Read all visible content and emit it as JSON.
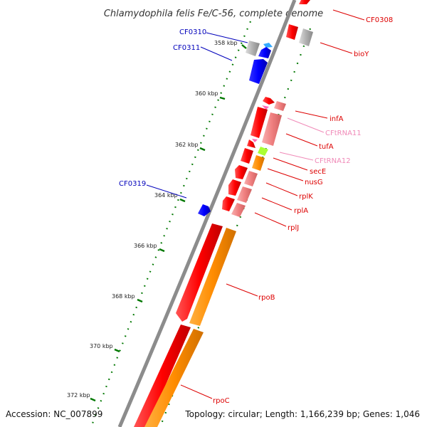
{
  "title": "Chlamydophila felis Fe/C-56, complete genome",
  "accession": "Accession: NC_007899",
  "topology": "Topology: circular; Length: 1,166,239 bp; Genes: 1,046",
  "ticks": [
    "358 kbp",
    "360 kbp",
    "362 kbp",
    "364 kbp",
    "366 kbp",
    "368 kbp",
    "370 kbp",
    "372 kbp"
  ],
  "labels": [
    {
      "text": "CF0308",
      "color": "#dd0000"
    },
    {
      "text": "CF0310",
      "color": "#0000bb"
    },
    {
      "text": "CF0311",
      "color": "#0000bb"
    },
    {
      "text": "bioY",
      "color": "#dd0000"
    },
    {
      "text": "infA",
      "color": "#dd0000"
    },
    {
      "text": "CFtRNA11",
      "color": "#f08ab8"
    },
    {
      "text": "tufA",
      "color": "#dd0000"
    },
    {
      "text": "CFtRNA12",
      "color": "#f08ab8"
    },
    {
      "text": "secE",
      "color": "#dd0000"
    },
    {
      "text": "nusG",
      "color": "#dd0000"
    },
    {
      "text": "CF0319",
      "color": "#0000bb"
    },
    {
      "text": "rplK",
      "color": "#dd0000"
    },
    {
      "text": "rplA",
      "color": "#dd0000"
    },
    {
      "text": "rplJ",
      "color": "#dd0000"
    },
    {
      "text": "rpoB",
      "color": "#dd0000"
    },
    {
      "text": "rpoC",
      "color": "#dd0000"
    }
  ],
  "colors": {
    "backbone": "#8c8c8c",
    "gene_red": "#ff0000",
    "gene_pink": "#f08080",
    "gene_orange": "#ff8c00",
    "gene_blue": "#0000ff",
    "gene_grey": "#a9a9a9",
    "gene_lime": "#aaff33",
    "trna_pink": "#ff69b4",
    "skew": "#007700"
  }
}
